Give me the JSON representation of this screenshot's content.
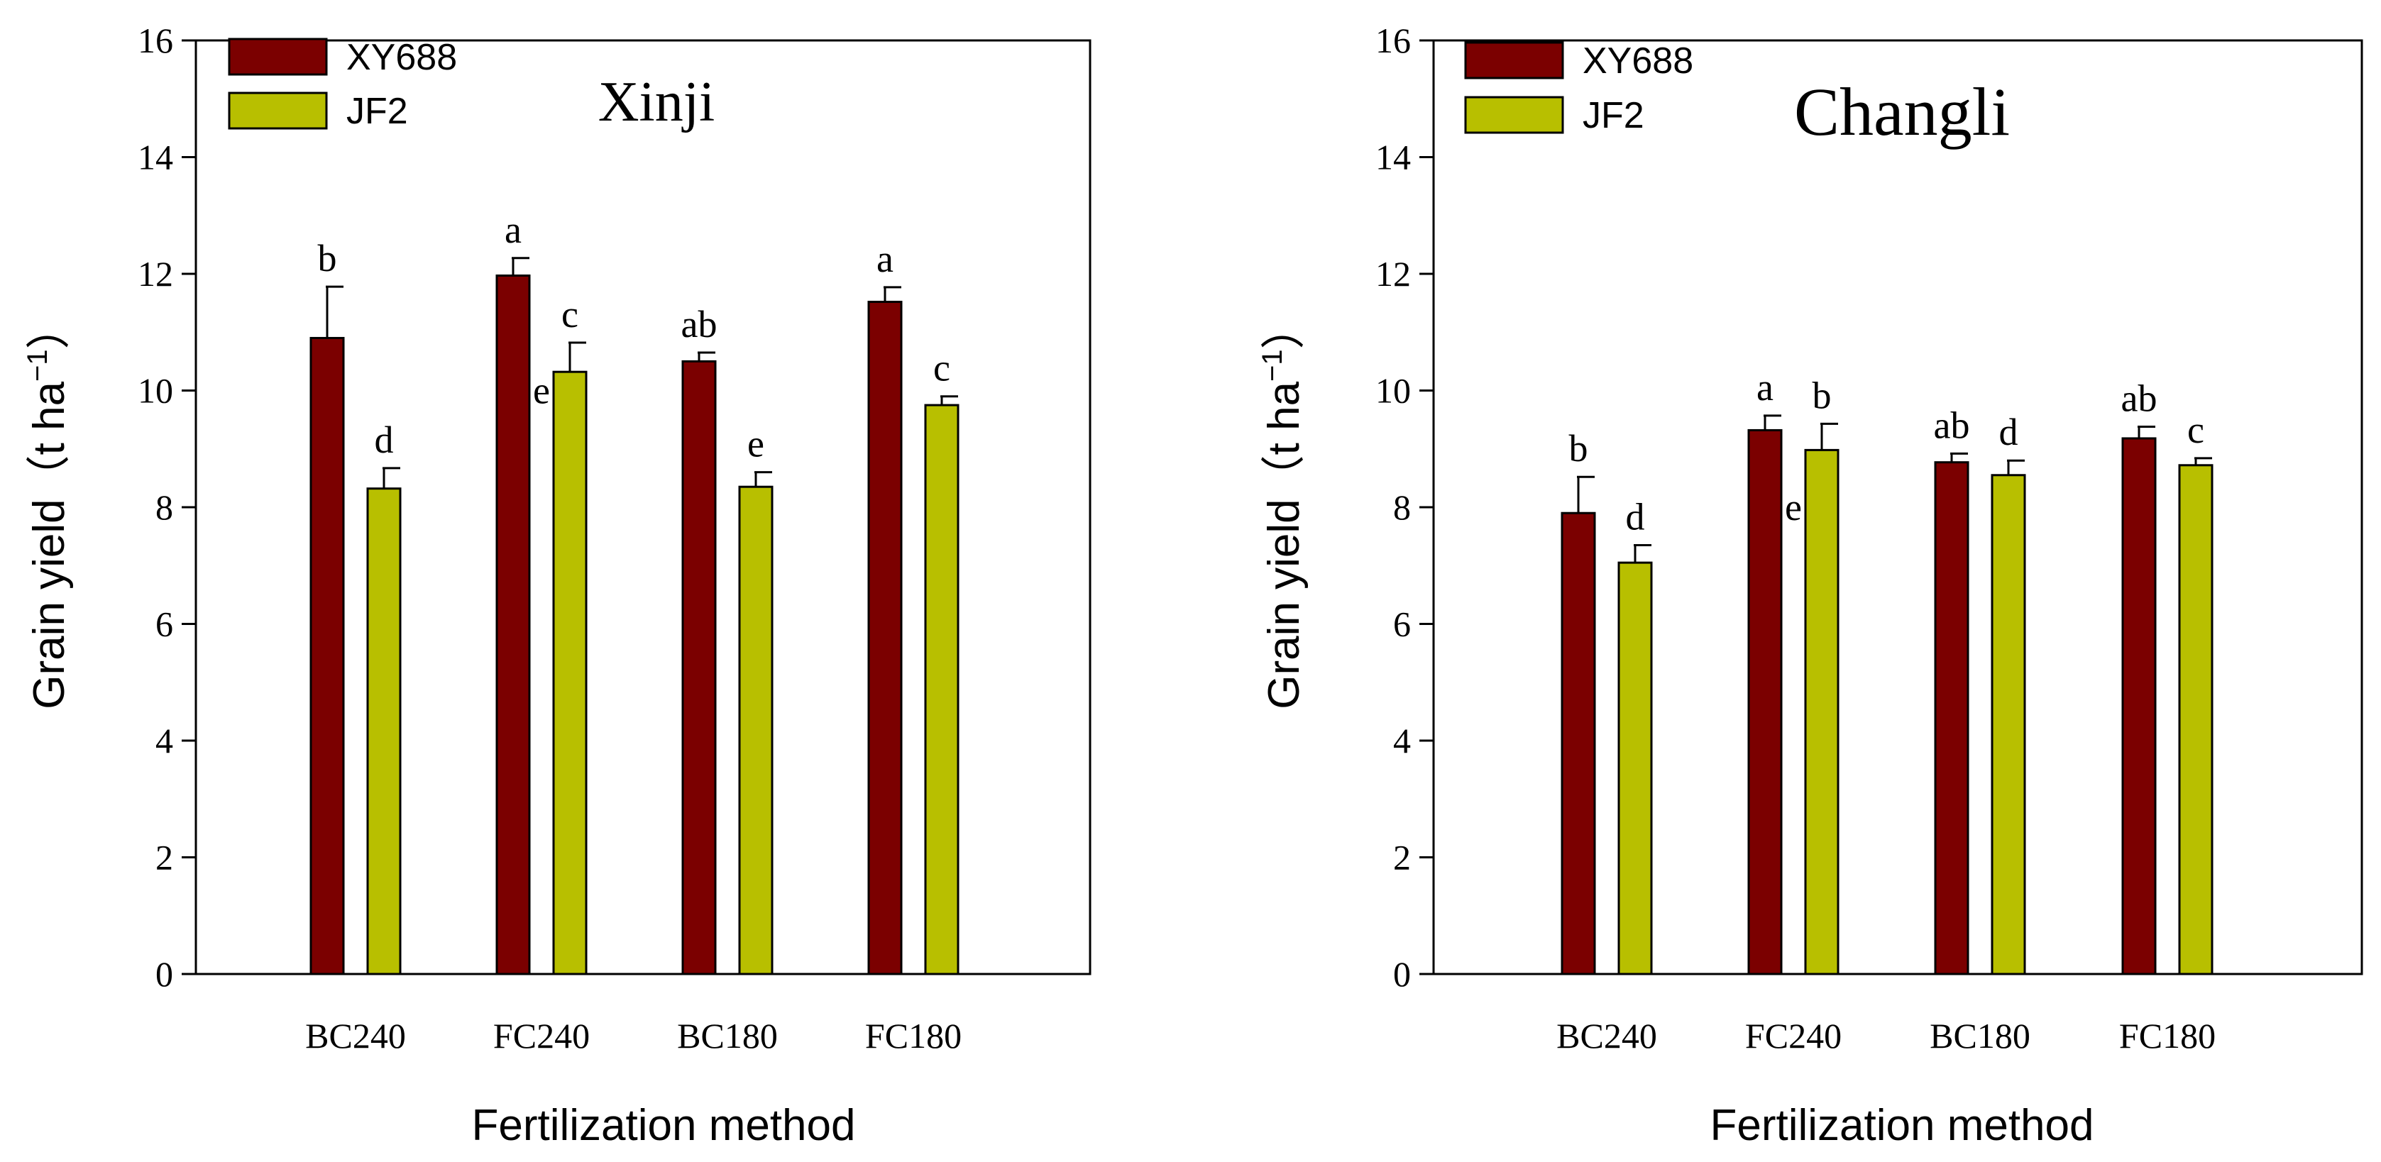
{
  "colors": {
    "XY688": "#7b0000",
    "JF2": "#b8bf00",
    "axis": "#000000"
  },
  "chart_data": [
    {
      "type": "bar",
      "title": "Xinji",
      "xlabel": "Fertilization method",
      "ylabel": "Grain yield (t ha⁻¹)",
      "ylabel_main": "Grain yield（t ha",
      "ylabel_sup": "−1",
      "ylabel_close": "）",
      "ylim": [
        0,
        16
      ],
      "yticks": [
        0,
        2,
        4,
        6,
        8,
        10,
        12,
        14,
        16
      ],
      "categories": [
        "BC240",
        "FC240",
        "BC180",
        "FC180"
      ],
      "legend_position": "top-left",
      "series": [
        {
          "name": "XY688",
          "values": [
            10.9,
            11.97,
            10.5,
            11.52
          ],
          "errors": [
            0.88,
            0.3,
            0.15,
            0.25
          ],
          "labels": [
            "b",
            "a",
            "ab",
            "a"
          ]
        },
        {
          "name": "JF2",
          "values": [
            8.32,
            10.32,
            8.35,
            9.75
          ],
          "errors": [
            0.35,
            0.5,
            0.25,
            0.15
          ],
          "labels": [
            "d",
            "c",
            "e",
            "c"
          ]
        }
      ],
      "annotations": [
        {
          "text": "e",
          "category": "FC240",
          "y": 10.0
        }
      ]
    },
    {
      "type": "bar",
      "title": "Changli",
      "xlabel": "Fertilization method",
      "ylabel": "Grain yield (t ha⁻¹)",
      "ylabel_main": "Grain yield（t ha",
      "ylabel_sup": "−1",
      "ylabel_close": "）",
      "ylim": [
        0,
        16
      ],
      "yticks": [
        0,
        2,
        4,
        6,
        8,
        10,
        12,
        14,
        16
      ],
      "categories": [
        "BC240",
        "FC240",
        "BC180",
        "FC180"
      ],
      "legend_position": "top-left",
      "series": [
        {
          "name": "XY688",
          "values": [
            7.9,
            9.32,
            8.77,
            9.18
          ],
          "errors": [
            0.62,
            0.25,
            0.15,
            0.2
          ],
          "labels": [
            "b",
            "a",
            "ab",
            "ab"
          ]
        },
        {
          "name": "JF2",
          "values": [
            7.05,
            8.98,
            8.55,
            8.72
          ],
          "errors": [
            0.3,
            0.45,
            0.25,
            0.12
          ],
          "labels": [
            "d",
            "b",
            "d",
            "c"
          ]
        }
      ],
      "annotations": [
        {
          "text": "e",
          "category": "FC240",
          "y": 8.0
        }
      ]
    }
  ]
}
